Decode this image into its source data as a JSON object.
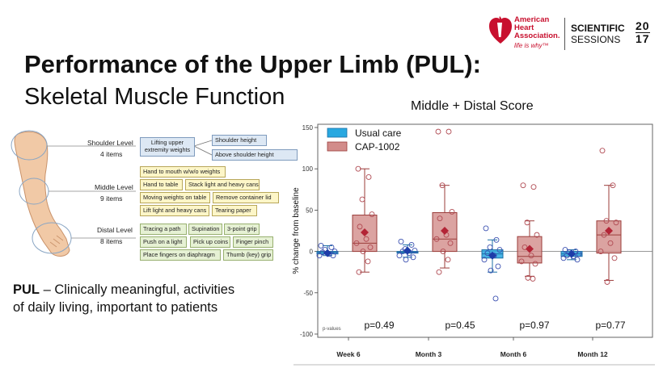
{
  "header": {
    "title_bold": "Performance of the Upper Limb (PUL):",
    "title_sub": "Skeletal Muscle Function"
  },
  "logo": {
    "aha_line1": "American",
    "aha_line2": "Heart",
    "aha_line3": "Association.",
    "aha_tagline": "life is why™",
    "sessions_line1": "SCIENTIFIC",
    "sessions_line2": "SESSIONS",
    "year_top": "20",
    "year_bottom": "17",
    "heart_icon": "aha-heart-torch-icon",
    "brand_color": "#c8102e"
  },
  "diagram": {
    "levels": [
      {
        "label": "Shoulder Level",
        "count": "4 items"
      },
      {
        "label": "Middle Level",
        "count": "9 items"
      },
      {
        "label": "Distal Level",
        "count": "8 items"
      }
    ],
    "shoulder": {
      "group": "Lifting upper extremity weights",
      "items": [
        "Shoulder height",
        "Above shoulder height"
      ]
    },
    "middle_items": [
      "Hand to mouth w/w/o weights",
      "Hand to table",
      "Stack light and heavy cans",
      "Moving weights on table",
      "Remove container lid",
      "Lift light and heavy cans",
      "Tearing paper"
    ],
    "distal_items": [
      "Tracing a path",
      "Supination",
      "3-point grip",
      "Push on a light",
      "Pick up coins",
      "Finger pinch",
      "Place fingers on diaphragm",
      "Thumb (key) grip"
    ]
  },
  "pul_text": {
    "bold": "PUL",
    "rest_line1": " – Clinically meaningful,  activities",
    "line2": "of daily living, important to patients"
  },
  "chart_data": {
    "type": "box",
    "title": "Middle + Distal Score",
    "xlabel": "",
    "ylabel": "% change from baseline",
    "ylim": [
      -100,
      150
    ],
    "yticks": [
      -100,
      -50,
      0,
      50,
      100,
      150
    ],
    "categories": [
      "Week 6",
      "Month 3",
      "Month 6",
      "Month 12"
    ],
    "pvalue_label": "p-values",
    "pvalues": [
      "p=0.49",
      "p=0.45",
      "p=0.97",
      "p=0.77"
    ],
    "legend_position": "top-left",
    "series": [
      {
        "name": "Usual care",
        "color": "#1ea2de",
        "boxes": [
          {
            "whisker_low": -5,
            "q1": -3,
            "median": -1,
            "q3": 0,
            "whisker_high": 7,
            "mean": -2,
            "points": [
              7,
              5,
              2,
              0,
              -1,
              -3,
              -5,
              -5
            ]
          },
          {
            "whisker_low": -7,
            "q1": -2,
            "median": -1,
            "q3": 0,
            "whisker_high": 8,
            "mean": 1,
            "points": [
              12,
              8,
              3,
              1,
              0,
              -2,
              -5,
              -7,
              -10
            ]
          },
          {
            "whisker_low": -25,
            "q1": -8,
            "median": -3,
            "q3": 2,
            "whisker_high": 14,
            "mean": -5,
            "points": [
              28,
              14,
              5,
              2,
              -2,
              -5,
              -10,
              -18,
              -23,
              -57
            ]
          },
          {
            "whisker_low": -10,
            "q1": -6,
            "median": -3,
            "q3": 0,
            "whisker_high": 2,
            "mean": -3,
            "points": [
              2,
              0,
              -1,
              -3,
              -5,
              -6,
              -8,
              -10
            ]
          }
        ]
      },
      {
        "name": "CAP-1002",
        "color": "#c0504d",
        "boxes": [
          {
            "whisker_low": -25,
            "q1": 0,
            "median": 10,
            "q3": 44,
            "whisker_high": 100,
            "mean": 23,
            "points": [
              100,
              90,
              63,
              45,
              30,
              15,
              10,
              5,
              0,
              -12,
              -25
            ]
          },
          {
            "whisker_low": -20,
            "q1": 0,
            "median": 15,
            "q3": 47,
            "whisker_high": 80,
            "mean": 25,
            "points": [
              145,
              145,
              80,
              48,
              40,
              20,
              15,
              10,
              0,
              -10,
              -25
            ]
          },
          {
            "whisker_low": -30,
            "q1": -14,
            "median": -6,
            "q3": 18,
            "whisker_high": 37,
            "mean": 3,
            "points": [
              80,
              78,
              35,
              20,
              5,
              -5,
              -12,
              -15,
              -32,
              -33
            ]
          },
          {
            "whisker_low": -35,
            "q1": -2,
            "median": 20,
            "q3": 37,
            "whisker_high": 80,
            "mean": 25,
            "points": [
              122,
              80,
              37,
              35,
              20,
              10,
              0,
              -8,
              -37
            ]
          }
        ]
      }
    ]
  }
}
